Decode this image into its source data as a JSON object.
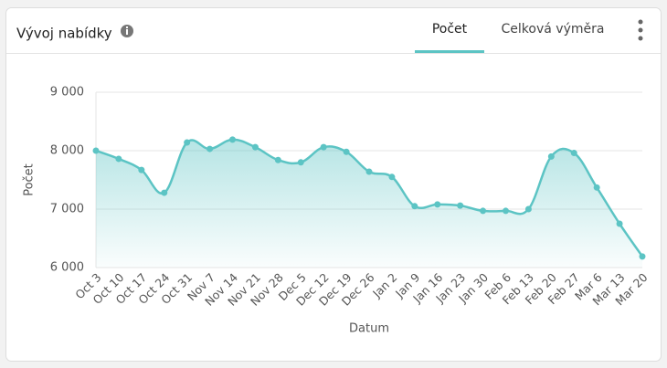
{
  "header": {
    "title": "Vývoj nabídky",
    "tabs": [
      "Počet",
      "Celková výměra"
    ]
  },
  "chart_data": {
    "type": "line",
    "x_label": "Datum",
    "y_label": "Počet",
    "categories": [
      "Oct 3",
      "Oct 10",
      "Oct 17",
      "Oct 24",
      "Oct 31",
      "Nov 7",
      "Nov 14",
      "Nov 21",
      "Nov 28",
      "Dec 5",
      "Dec 12",
      "Dec 19",
      "Dec 26",
      "Jan 2",
      "Jan 9",
      "Jan 16",
      "Jan 23",
      "Jan 30",
      "Feb 6",
      "Feb 13",
      "Feb 20",
      "Feb 27",
      "Mar 6",
      "Mar 13",
      "Mar 20"
    ],
    "series": [
      {
        "name": "Počet",
        "color": "#5cc4c4",
        "values": [
          8000,
          7860,
          7670,
          7280,
          8140,
          8030,
          8190,
          8060,
          7840,
          7800,
          8060,
          7980,
          7640,
          7550,
          7050,
          7080,
          7060,
          6970,
          6970,
          7000,
          7900,
          7960,
          7370,
          6750,
          6190
        ]
      }
    ],
    "ylim": [
      6000,
      9000
    ],
    "yticks": [
      {
        "value": 6000,
        "label": "6 000"
      },
      {
        "value": 7000,
        "label": "7 000"
      },
      {
        "value": 8000,
        "label": "8 000"
      },
      {
        "value": 9000,
        "label": "9 000"
      }
    ],
    "grid": true
  }
}
